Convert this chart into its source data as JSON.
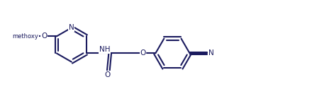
{
  "bg_color": "#ffffff",
  "line_color": "#1a1a5e",
  "line_width": 1.5,
  "figsize": [
    4.71,
    1.5
  ],
  "dpi": 100,
  "xlim": [
    -0.5,
    9.5
  ],
  "ylim": [
    -0.2,
    3.0
  ]
}
